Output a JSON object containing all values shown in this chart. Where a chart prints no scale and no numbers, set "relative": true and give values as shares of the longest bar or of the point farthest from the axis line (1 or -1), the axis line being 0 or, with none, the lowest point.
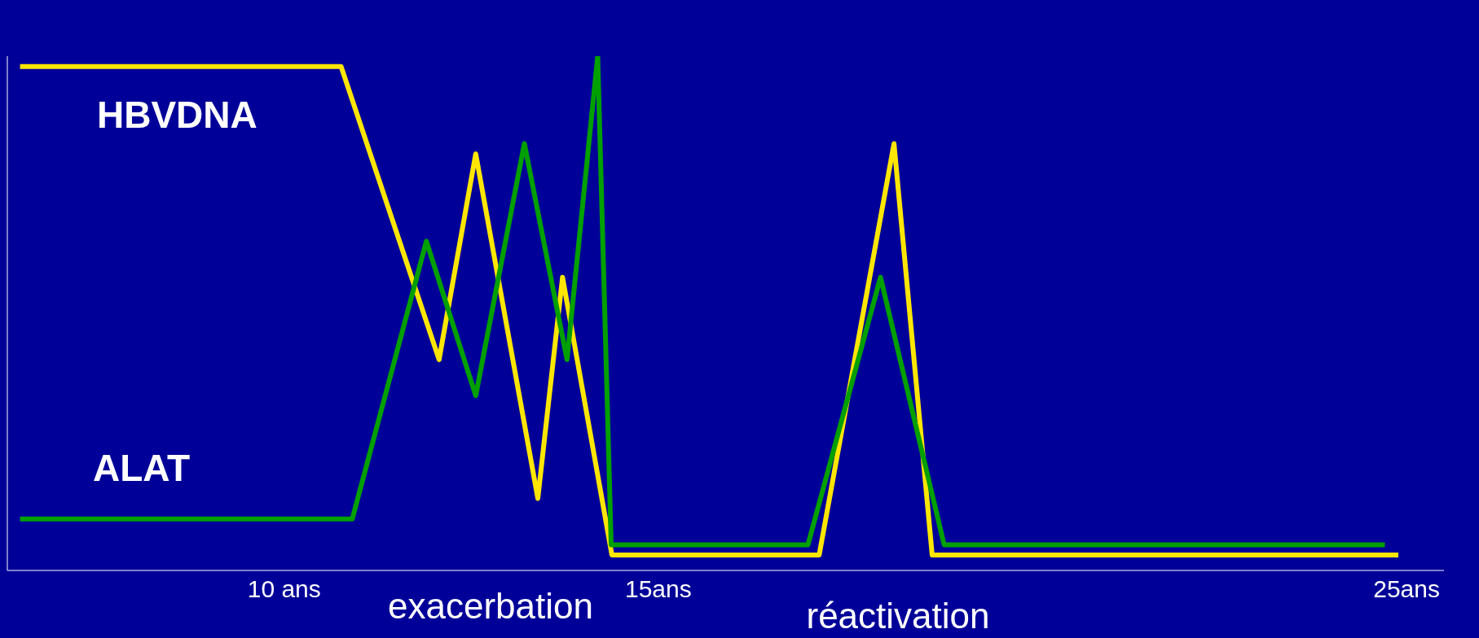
{
  "chart_data": {
    "type": "line",
    "relative": true,
    "xlim": [
      6.3,
      25.5
    ],
    "xticks": [
      {
        "value": 10,
        "label": "10 ans"
      },
      {
        "value": 15,
        "label": "15ans"
      },
      {
        "value": 25,
        "label": "25ans"
      }
    ],
    "series": [
      {
        "name": "HBVDNA",
        "color": "#ffe600",
        "x": [
          6.47,
          10.76,
          12.07,
          12.56,
          13.39,
          13.72,
          14.38,
          17.15,
          18.15,
          18.66,
          24.89
        ],
        "values": [
          0.98,
          0.98,
          0.41,
          0.81,
          0.14,
          0.57,
          0.03,
          0.03,
          0.83,
          0.03,
          0.03
        ]
      },
      {
        "name": "ALAT",
        "color": "#00a000",
        "x": [
          6.47,
          10.91,
          11.9,
          12.56,
          13.21,
          13.78,
          14.19,
          14.37,
          17.0,
          17.97,
          18.82,
          24.71
        ],
        "values": [
          0.1,
          0.1,
          0.64,
          0.34,
          0.83,
          0.41,
          1,
          0.05,
          0.05,
          0.57,
          0.05,
          0.05
        ]
      }
    ],
    "annotations": [
      "exacerbation",
      "réactivation"
    ],
    "grid": false,
    "legend": false,
    "marker": "none",
    "line_style": "solid"
  }
}
